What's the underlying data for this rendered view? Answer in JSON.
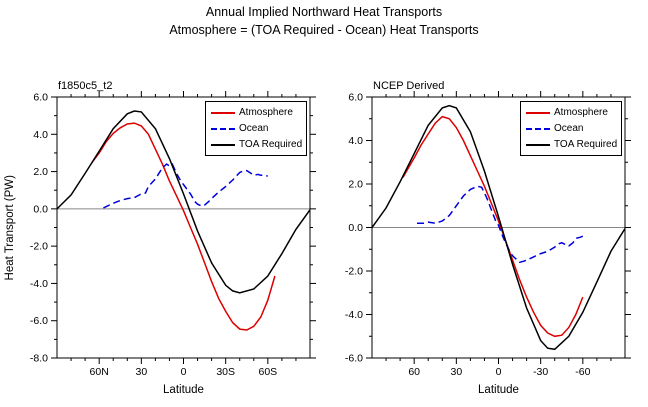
{
  "title": {
    "line1": "Annual Implied Northward Heat Transports",
    "line2": "Atmosphere = (TOA Required - Ocean) Heat Transports"
  },
  "ylabel": "Heat Transport (PW)",
  "colors": {
    "atmosphere": "#dd0000",
    "ocean": "#0000dd",
    "toa_required": "#000000",
    "zero_line": "#888888"
  },
  "chart_data": [
    {
      "type": "line",
      "title": "f1850c5_t2",
      "xlabel": "Latitude",
      "ylabel": "Heat Transport (PW)",
      "xlim": [
        90,
        -90
      ],
      "ylim": [
        -8,
        6
      ],
      "grid": false,
      "zero_line": true,
      "legend_position": "top-right",
      "xticks": {
        "values": [
          60,
          30,
          0,
          -30,
          -60
        ],
        "labels": [
          "60N",
          "30",
          "0",
          "30S",
          "60S"
        ],
        "minor_step": 10
      },
      "yticks": {
        "values": [
          6,
          4,
          2,
          0,
          -2,
          -4,
          -6,
          -8
        ],
        "labels": [
          "6.0",
          "4.0",
          "2.0",
          "0.0",
          "-2.0",
          "-4.0",
          "-6.0",
          "-8.0"
        ],
        "minor_step": 1
      },
      "series": [
        {
          "name": "Atmosphere",
          "color": "#dd0000",
          "style": "solid",
          "x": [
            65,
            60,
            55,
            50,
            45,
            40,
            35,
            30,
            25,
            20,
            15,
            10,
            5,
            0,
            -5,
            -10,
            -15,
            -20,
            -25,
            -30,
            -35,
            -40,
            -45,
            -50,
            -55,
            -60,
            -65
          ],
          "y": [
            2.5,
            3.0,
            3.6,
            4.05,
            4.35,
            4.55,
            4.6,
            4.45,
            4.0,
            3.2,
            2.4,
            1.5,
            0.7,
            -0.1,
            -1.0,
            -1.9,
            -2.9,
            -3.9,
            -4.8,
            -5.5,
            -6.1,
            -6.45,
            -6.5,
            -6.3,
            -5.8,
            -4.9,
            -3.6
          ]
        },
        {
          "name": "Ocean",
          "color": "#0000dd",
          "style": "dashed",
          "x": [
            57,
            50,
            45,
            40,
            35,
            30,
            27,
            25,
            20,
            15,
            12,
            10,
            8,
            5,
            2,
            0,
            -3,
            -5,
            -8,
            -10,
            -13,
            -15,
            -18,
            -20,
            -25,
            -30,
            -35,
            -40,
            -43,
            -45,
            -48,
            -50,
            -53,
            -55,
            -58,
            -60
          ],
          "y": [
            0.05,
            0.3,
            0.45,
            0.55,
            0.6,
            0.8,
            0.85,
            1.2,
            1.6,
            2.2,
            2.4,
            2.3,
            2.4,
            1.9,
            1.5,
            1.3,
            1.0,
            0.8,
            0.4,
            0.25,
            0.15,
            0.2,
            0.4,
            0.55,
            0.9,
            1.2,
            1.55,
            1.95,
            2.05,
            2.05,
            1.9,
            1.8,
            1.85,
            1.8,
            1.8,
            1.75
          ]
        },
        {
          "name": "TOA Required",
          "color": "#000000",
          "style": "solid",
          "x": [
            90,
            80,
            70,
            60,
            50,
            40,
            35,
            30,
            20,
            10,
            0,
            -10,
            -20,
            -30,
            -35,
            -40,
            -50,
            -60,
            -70,
            -80,
            -90
          ],
          "y": [
            0.0,
            0.75,
            1.9,
            3.1,
            4.3,
            5.1,
            5.25,
            5.2,
            4.3,
            2.7,
            0.8,
            -1.2,
            -2.9,
            -4.1,
            -4.4,
            -4.5,
            -4.3,
            -3.6,
            -2.4,
            -1.1,
            -0.05
          ]
        }
      ]
    },
    {
      "type": "line",
      "title": "NCEP Derived",
      "xlabel": "Latitude",
      "ylabel": "Heat Transport (PW)",
      "xlim": [
        90,
        -90
      ],
      "ylim": [
        -6,
        6
      ],
      "grid": false,
      "zero_line": true,
      "legend_position": "top-right",
      "xticks": {
        "values": [
          60,
          30,
          0,
          -30,
          -60
        ],
        "labels": [
          "60",
          "30",
          "0",
          "-30",
          "-60"
        ],
        "minor_step": 10
      },
      "yticks": {
        "values": [
          6,
          4,
          2,
          0,
          -2,
          -4,
          -6
        ],
        "labels": [
          "6.0",
          "4.0",
          "2.0",
          "0.0",
          "-2.0",
          "-4.0",
          "-6.0"
        ],
        "minor_step": 1
      },
      "series": [
        {
          "name": "Atmosphere",
          "color": "#dd0000",
          "style": "solid",
          "x": [
            68,
            60,
            55,
            50,
            45,
            40,
            35,
            30,
            25,
            20,
            15,
            10,
            5,
            0,
            -5,
            -10,
            -15,
            -20,
            -25,
            -30,
            -35,
            -40,
            -45,
            -50,
            -55,
            -60
          ],
          "y": [
            2.3,
            3.2,
            3.8,
            4.3,
            4.8,
            5.1,
            5.0,
            4.6,
            4.0,
            3.3,
            2.6,
            1.9,
            1.1,
            0.3,
            -0.6,
            -1.5,
            -2.4,
            -3.2,
            -3.9,
            -4.5,
            -4.85,
            -5.0,
            -4.95,
            -4.6,
            -4.0,
            -3.2
          ]
        },
        {
          "name": "Ocean",
          "color": "#0000dd",
          "style": "dashed",
          "x": [
            58,
            53,
            50,
            45,
            40,
            35,
            30,
            25,
            20,
            15,
            12,
            10,
            8,
            5,
            2,
            0,
            -3,
            -5,
            -8,
            -10,
            -15,
            -18,
            -20,
            -25,
            -30,
            -35,
            -40,
            -43,
            -45,
            -48,
            -50,
            -53,
            -55,
            -58,
            -60
          ],
          "y": [
            0.2,
            0.2,
            0.25,
            0.2,
            0.3,
            0.55,
            1.0,
            1.45,
            1.75,
            1.9,
            1.85,
            1.6,
            1.3,
            0.8,
            0.3,
            0.1,
            -0.4,
            -0.7,
            -1.1,
            -1.3,
            -1.6,
            -1.55,
            -1.5,
            -1.35,
            -1.2,
            -1.1,
            -0.9,
            -0.75,
            -0.7,
            -0.8,
            -0.85,
            -0.7,
            -0.5,
            -0.45,
            -0.4
          ]
        },
        {
          "name": "TOA Required",
          "color": "#000000",
          "style": "solid",
          "x": [
            90,
            80,
            70,
            60,
            50,
            40,
            35,
            30,
            20,
            10,
            0,
            -10,
            -20,
            -30,
            -35,
            -40,
            -50,
            -60,
            -70,
            -80,
            -90
          ],
          "y": [
            0.0,
            0.9,
            2.1,
            3.4,
            4.7,
            5.5,
            5.6,
            5.5,
            4.4,
            2.6,
            0.5,
            -1.7,
            -3.7,
            -5.2,
            -5.55,
            -5.6,
            -5.0,
            -3.9,
            -2.5,
            -1.1,
            -0.05
          ]
        }
      ]
    }
  ]
}
